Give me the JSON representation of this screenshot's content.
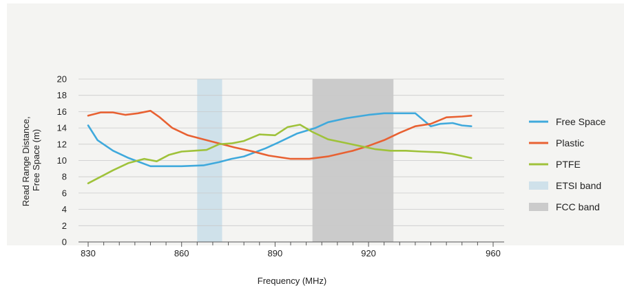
{
  "chart_data": {
    "type": "line",
    "xlabel": "Frequency (MHz)",
    "ylabel_lines": [
      "Read Range Distance,",
      "Free Space (m)"
    ],
    "xlim": [
      830,
      960
    ],
    "ylim": [
      0,
      20
    ],
    "xticks": [
      830,
      860,
      890,
      920,
      960
    ],
    "yticks": [
      0,
      2,
      4,
      6,
      8,
      10,
      12,
      14,
      16,
      18,
      20
    ],
    "grid": true,
    "legend_position": "right",
    "bands": [
      {
        "name": "ETSI band",
        "x_start": 865,
        "x_end": 873,
        "color": "#cfe1ea"
      },
      {
        "name": "FCC band",
        "x_start": 902,
        "x_end": 928,
        "color": "#cbcbcb"
      }
    ],
    "series": [
      {
        "name": "Free Space",
        "color": "#3fa9dc",
        "x": [
          830,
          833,
          838,
          843,
          850,
          855,
          860,
          867,
          872,
          876,
          880,
          887,
          891,
          897,
          903,
          907,
          913,
          920,
          925,
          930,
          935,
          940,
          943,
          947,
          950,
          953
        ],
        "y": [
          14.3,
          12.5,
          11.2,
          10.3,
          9.3,
          9.3,
          9.3,
          9.4,
          9.8,
          10.2,
          10.5,
          11.5,
          12.2,
          13.3,
          14.0,
          14.7,
          15.2,
          15.6,
          15.8,
          15.8,
          15.8,
          14.2,
          14.5,
          14.6,
          14.3,
          14.2
        ]
      },
      {
        "name": "Plastic",
        "color": "#e86132",
        "x": [
          830,
          834,
          838,
          842,
          846,
          850,
          853,
          857,
          862,
          867,
          872,
          877,
          883,
          888,
          895,
          901,
          907,
          915,
          920,
          925,
          930,
          935,
          940,
          945,
          950,
          953
        ],
        "y": [
          15.5,
          15.9,
          15.9,
          15.6,
          15.8,
          16.1,
          15.3,
          14.0,
          13.1,
          12.6,
          12.1,
          11.6,
          11.1,
          10.6,
          10.2,
          10.2,
          10.5,
          11.2,
          11.8,
          12.5,
          13.4,
          14.2,
          14.5,
          15.3,
          15.4,
          15.5
        ]
      },
      {
        "name": "PTFE",
        "color": "#9fc23a",
        "x": [
          830,
          834,
          838,
          843,
          848,
          852,
          856,
          860,
          864,
          868,
          872,
          876,
          880,
          885,
          890,
          894,
          898,
          902,
          907,
          912,
          917,
          922,
          927,
          932,
          937,
          943,
          947,
          953
        ],
        "y": [
          7.2,
          8.0,
          8.8,
          9.7,
          10.2,
          9.9,
          10.7,
          11.1,
          11.2,
          11.3,
          12.0,
          12.1,
          12.4,
          13.2,
          13.1,
          14.1,
          14.4,
          13.5,
          12.6,
          12.2,
          11.8,
          11.4,
          11.2,
          11.2,
          11.1,
          11.0,
          10.8,
          10.3
        ]
      }
    ],
    "legend": [
      {
        "label": "Free Space",
        "kind": "line",
        "color": "#3fa9dc"
      },
      {
        "label": "Plastic",
        "kind": "line",
        "color": "#e86132"
      },
      {
        "label": "PTFE",
        "kind": "line",
        "color": "#9fc23a"
      },
      {
        "label": "ETSI band",
        "kind": "box",
        "color": "#cfe1ea"
      },
      {
        "label": "FCC band",
        "kind": "box",
        "color": "#cbcbcb"
      }
    ]
  }
}
